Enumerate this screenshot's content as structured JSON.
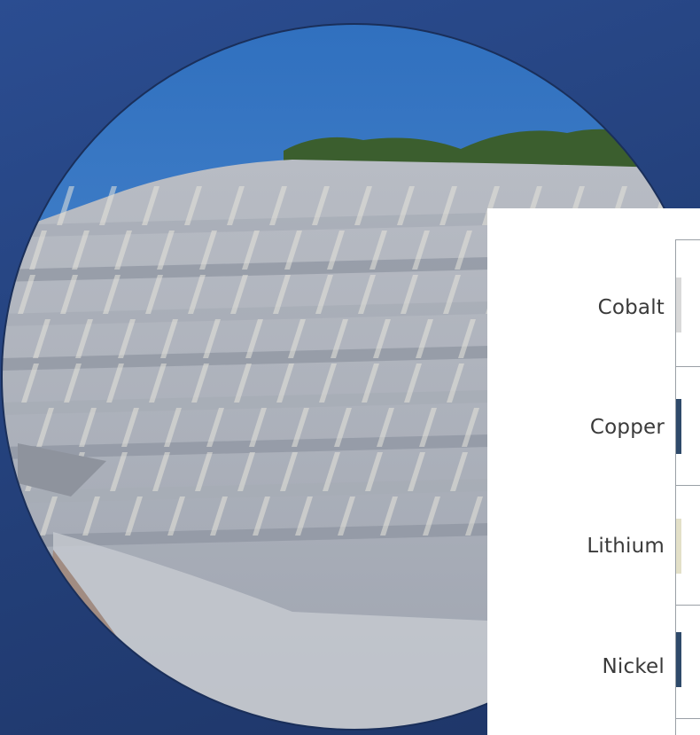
{
  "photo": {
    "subject": "open-pit-quarry-icon",
    "colors": {
      "sky": "#3f7fc8",
      "rock": "#a9aebb",
      "vegetation": "#3b5e2e"
    }
  },
  "elements": {
    "items": [
      {
        "label": "Cobalt"
      },
      {
        "label": "Copper"
      },
      {
        "label": "Lithium"
      },
      {
        "label": "Nickel"
      }
    ]
  },
  "colors": {
    "background": "#2a4a8c",
    "card": "#ffffff",
    "bar_dark": "#2f4a6a",
    "bar_light": "#d9d9d9"
  }
}
